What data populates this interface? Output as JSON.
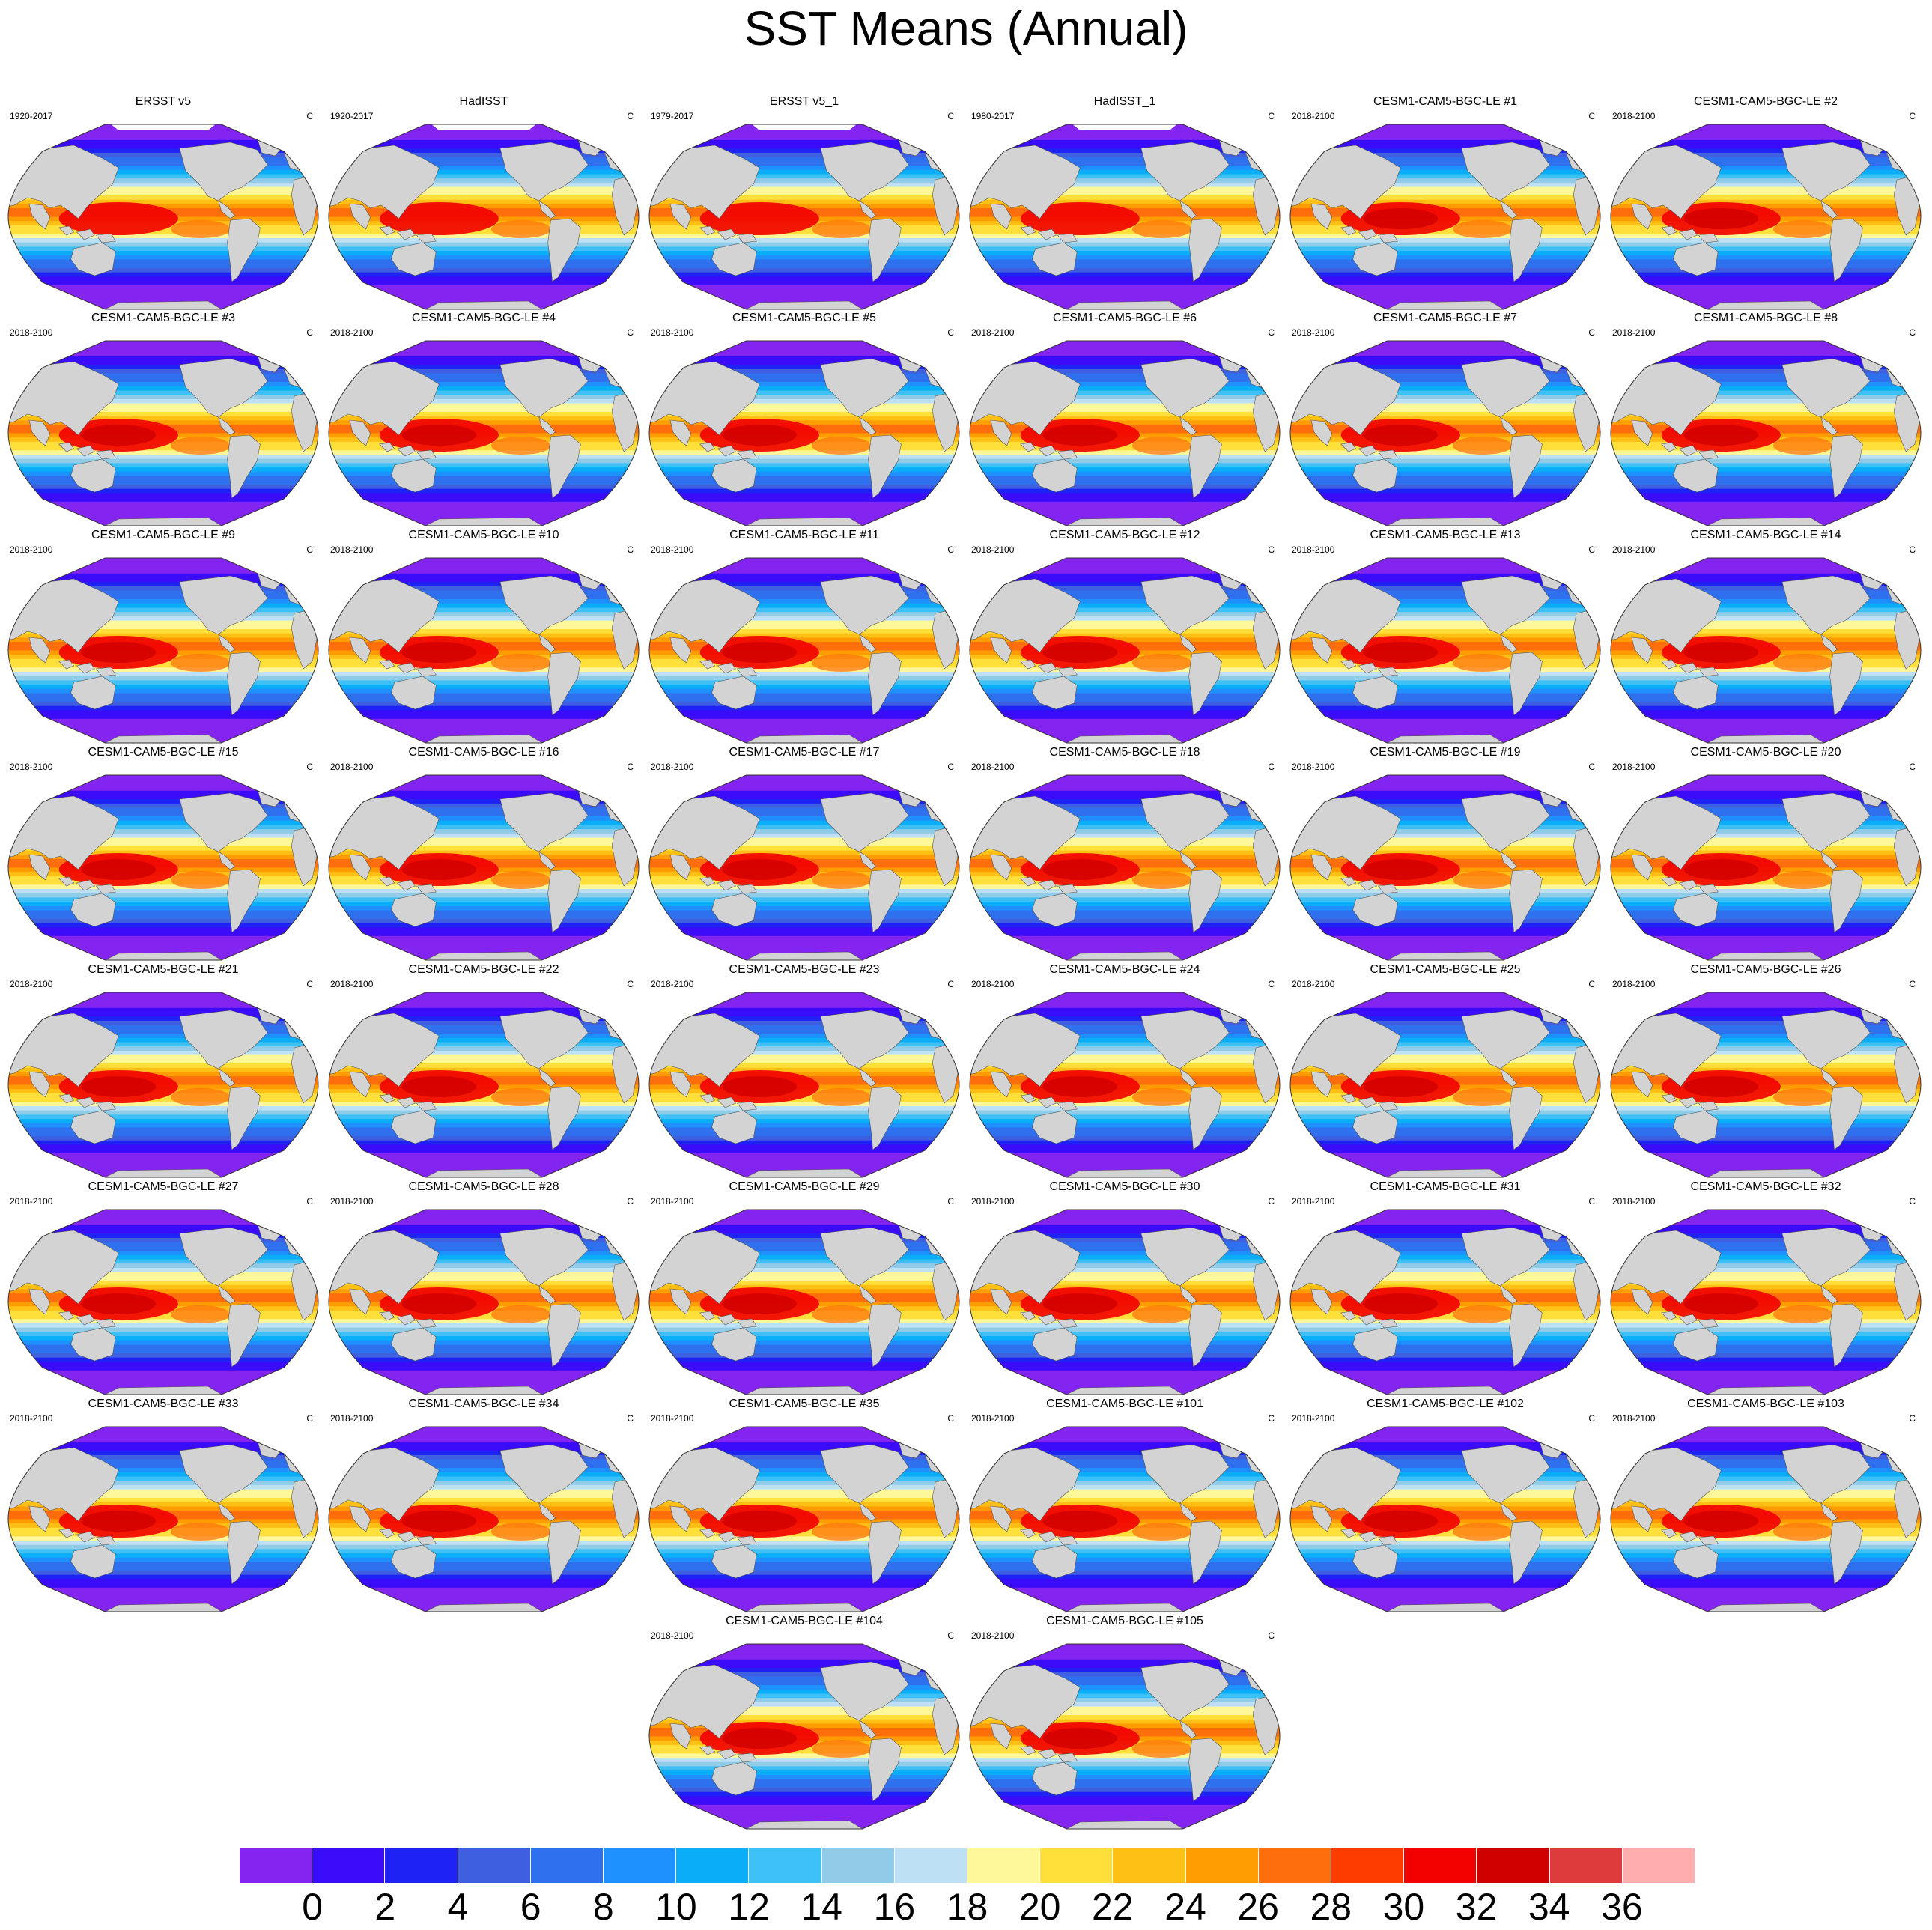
{
  "figure": {
    "title": "SST Means (Annual)",
    "units": "C"
  },
  "panels": [
    {
      "title": "ERSST v5",
      "period": "1920-2017"
    },
    {
      "title": "HadISST",
      "period": "1920-2017"
    },
    {
      "title": "ERSST v5_1",
      "period": "1979-2017"
    },
    {
      "title": "HadISST_1",
      "period": "1980-2017"
    },
    {
      "title": "CESM1-CAM5-BGC-LE #1",
      "period": "2018-2100"
    },
    {
      "title": "CESM1-CAM5-BGC-LE #2",
      "period": "2018-2100"
    },
    {
      "title": "CESM1-CAM5-BGC-LE #3",
      "period": "2018-2100"
    },
    {
      "title": "CESM1-CAM5-BGC-LE #4",
      "period": "2018-2100"
    },
    {
      "title": "CESM1-CAM5-BGC-LE #5",
      "period": "2018-2100"
    },
    {
      "title": "CESM1-CAM5-BGC-LE #6",
      "period": "2018-2100"
    },
    {
      "title": "CESM1-CAM5-BGC-LE #7",
      "period": "2018-2100"
    },
    {
      "title": "CESM1-CAM5-BGC-LE #8",
      "period": "2018-2100"
    },
    {
      "title": "CESM1-CAM5-BGC-LE #9",
      "period": "2018-2100"
    },
    {
      "title": "CESM1-CAM5-BGC-LE #10",
      "period": "2018-2100"
    },
    {
      "title": "CESM1-CAM5-BGC-LE #11",
      "period": "2018-2100"
    },
    {
      "title": "CESM1-CAM5-BGC-LE #12",
      "period": "2018-2100"
    },
    {
      "title": "CESM1-CAM5-BGC-LE #13",
      "period": "2018-2100"
    },
    {
      "title": "CESM1-CAM5-BGC-LE #14",
      "period": "2018-2100"
    },
    {
      "title": "CESM1-CAM5-BGC-LE #15",
      "period": "2018-2100"
    },
    {
      "title": "CESM1-CAM5-BGC-LE #16",
      "period": "2018-2100"
    },
    {
      "title": "CESM1-CAM5-BGC-LE #17",
      "period": "2018-2100"
    },
    {
      "title": "CESM1-CAM5-BGC-LE #18",
      "period": "2018-2100"
    },
    {
      "title": "CESM1-CAM5-BGC-LE #19",
      "period": "2018-2100"
    },
    {
      "title": "CESM1-CAM5-BGC-LE #20",
      "period": "2018-2100"
    },
    {
      "title": "CESM1-CAM5-BGC-LE #21",
      "period": "2018-2100"
    },
    {
      "title": "CESM1-CAM5-BGC-LE #22",
      "period": "2018-2100"
    },
    {
      "title": "CESM1-CAM5-BGC-LE #23",
      "period": "2018-2100"
    },
    {
      "title": "CESM1-CAM5-BGC-LE #24",
      "period": "2018-2100"
    },
    {
      "title": "CESM1-CAM5-BGC-LE #25",
      "period": "2018-2100"
    },
    {
      "title": "CESM1-CAM5-BGC-LE #26",
      "period": "2018-2100"
    },
    {
      "title": "CESM1-CAM5-BGC-LE #27",
      "period": "2018-2100"
    },
    {
      "title": "CESM1-CAM5-BGC-LE #28",
      "period": "2018-2100"
    },
    {
      "title": "CESM1-CAM5-BGC-LE #29",
      "period": "2018-2100"
    },
    {
      "title": "CESM1-CAM5-BGC-LE #30",
      "period": "2018-2100"
    },
    {
      "title": "CESM1-CAM5-BGC-LE #31",
      "period": "2018-2100"
    },
    {
      "title": "CESM1-CAM5-BGC-LE #32",
      "period": "2018-2100"
    },
    {
      "title": "CESM1-CAM5-BGC-LE #33",
      "period": "2018-2100"
    },
    {
      "title": "CESM1-CAM5-BGC-LE #34",
      "period": "2018-2100"
    },
    {
      "title": "CESM1-CAM5-BGC-LE #35",
      "period": "2018-2100"
    },
    {
      "title": "CESM1-CAM5-BGC-LE #101",
      "period": "2018-2100"
    },
    {
      "title": "CESM1-CAM5-BGC-LE #102",
      "period": "2018-2100"
    },
    {
      "title": "CESM1-CAM5-BGC-LE #103",
      "period": "2018-2100"
    },
    {
      "title": "CESM1-CAM5-BGC-LE #104",
      "period": "2018-2100"
    },
    {
      "title": "CESM1-CAM5-BGC-LE #105",
      "period": "2018-2100"
    }
  ],
  "colorbar": {
    "labels": [
      "0",
      "2",
      "4",
      "6",
      "8",
      "10",
      "12",
      "14",
      "16",
      "18",
      "20",
      "22",
      "24",
      "26",
      "28",
      "30",
      "32",
      "34",
      "36"
    ],
    "colors": [
      "#8424f0",
      "#3a0cfa",
      "#1e22f5",
      "#3e5fe0",
      "#2e70ee",
      "#1e90ff",
      "#0aaef8",
      "#3dc0f6",
      "#90cce8",
      "#bde0f4",
      "#fff89a",
      "#ffdf3a",
      "#ffc016",
      "#ff9d00",
      "#ff6e0c",
      "#ff3c00",
      "#f20000",
      "#cf0000",
      "#de3c3c",
      "#ffaeae"
    ]
  },
  "map_colors": {
    "land": "#d3d3d3",
    "sea_ice": "#ffffff"
  }
}
